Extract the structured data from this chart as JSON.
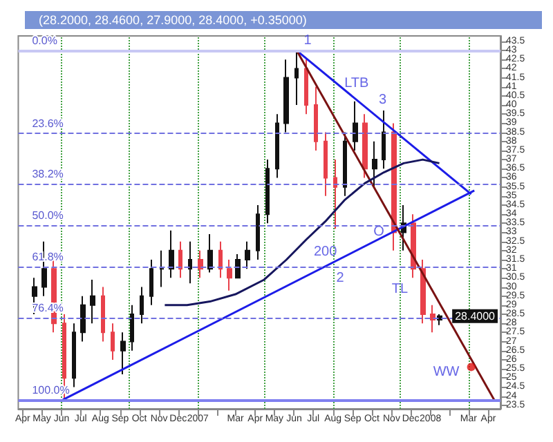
{
  "chart_data": {
    "type": "candlestick",
    "title": "(28.2000, 28.4600, 27.9000, 28.4000, +0.35000)",
    "x": [
      "2006-04-20",
      "2006-05-05",
      "2006-05-20",
      "2006-06-05",
      "2006-06-20",
      "2006-07-05",
      "2006-07-20",
      "2006-08-05",
      "2006-08-20",
      "2006-09-05",
      "2006-09-20",
      "2006-10-05",
      "2006-10-20",
      "2006-11-05",
      "2006-11-20",
      "2006-12-05",
      "2006-12-20",
      "2007-01-05",
      "2007-01-20",
      "2007-02-05",
      "2007-02-20",
      "2007-03-05",
      "2007-03-20",
      "2007-04-05",
      "2007-04-20",
      "2007-05-05",
      "2007-05-20",
      "2007-06-05",
      "2007-06-20",
      "2007-07-05",
      "2007-07-20",
      "2007-08-05",
      "2007-08-20",
      "2007-09-05",
      "2007-09-20",
      "2007-10-05",
      "2007-10-20",
      "2007-11-05",
      "2007-11-20",
      "2007-12-05",
      "2007-12-20",
      "2008-01-05",
      "2008-01-15"
    ],
    "ohlc": [
      [
        29.5,
        30.5,
        28.5,
        30
      ],
      [
        30,
        32.5,
        29.5,
        31
      ],
      [
        31,
        31.5,
        27.5,
        28
      ],
      [
        28,
        28.5,
        23.8,
        25
      ],
      [
        25,
        28,
        24.5,
        27.5
      ],
      [
        27.5,
        29.5,
        27,
        29
      ],
      [
        29,
        30.4,
        28,
        29.5
      ],
      [
        29.5,
        30,
        27,
        27.5
      ],
      [
        27.5,
        28,
        26,
        26.5
      ],
      [
        26.5,
        27.5,
        25.2,
        27
      ],
      [
        27,
        29,
        26.5,
        28.5
      ],
      [
        28.5,
        30,
        28,
        29.5
      ],
      [
        29.5,
        31.5,
        29,
        31
      ],
      [
        31,
        32,
        30,
        31
      ],
      [
        31,
        33.1,
        30.5,
        32
      ],
      [
        32,
        32.5,
        30.5,
        31
      ],
      [
        31,
        32.5,
        30.2,
        31.5
      ],
      [
        31.5,
        32,
        30.5,
        31
      ],
      [
        31,
        32.9,
        30.8,
        32
      ],
      [
        32,
        32.5,
        30.5,
        31
      ],
      [
        31,
        31.5,
        29.8,
        30.5
      ],
      [
        30.5,
        31.8,
        30.5,
        31.5
      ],
      [
        31.5,
        32.5,
        31,
        32
      ],
      [
        32,
        34.5,
        31.5,
        34
      ],
      [
        34,
        37,
        33.5,
        36.5
      ],
      [
        36.5,
        39.5,
        36,
        39
      ],
      [
        39,
        42.5,
        38.5,
        41.5
      ],
      [
        41.5,
        43,
        40,
        42
      ],
      [
        42,
        42.5,
        39.5,
        40
      ],
      [
        40,
        41,
        37.5,
        38
      ],
      [
        38,
        38.5,
        35,
        36
      ],
      [
        36,
        37,
        33.2,
        35.5
      ],
      [
        35.5,
        38.5,
        35,
        38
      ],
      [
        38,
        40.2,
        37.5,
        39
      ],
      [
        39,
        39.5,
        36,
        36.5
      ],
      [
        36.5,
        38,
        35.5,
        37
      ],
      [
        37,
        39.7,
        36.5,
        38.5
      ],
      [
        38.5,
        39,
        32,
        33
      ],
      [
        33,
        34.5,
        32,
        33.5
      ],
      [
        33.5,
        34,
        30.5,
        31
      ],
      [
        31,
        31.5,
        28,
        28.5
      ],
      [
        28.5,
        29,
        27.5,
        28.2
      ],
      [
        28.2,
        28.5,
        27.9,
        28.4
      ]
    ],
    "colors": [
      "#111111",
      "#111111",
      "#e8404a",
      "#e8404a",
      "#111111",
      "#111111",
      "#111111",
      "#e8404a",
      "#e8404a",
      "#111111",
      "#111111",
      "#111111",
      "#111111",
      "#111111",
      "#111111",
      "#e8404a",
      "#111111",
      "#e8404a",
      "#111111",
      "#e8404a",
      "#e8404a",
      "#111111",
      "#111111",
      "#111111",
      "#111111",
      "#111111",
      "#111111",
      "#111111",
      "#e8404a",
      "#e8404a",
      "#e8404a",
      "#e8404a",
      "#111111",
      "#111111",
      "#e8404a",
      "#111111",
      "#111111",
      "#e8404a",
      "#111111",
      "#e8404a",
      "#e8404a",
      "#e8404a",
      "#111111"
    ],
    "series": [
      {
        "type": "line",
        "color": "#1c1ce8",
        "x": [
          "2006-06-03",
          "2008-03-10"
        ],
        "values": [
          23.8,
          35.3
        ]
      },
      {
        "type": "line",
        "color": "#1c1ce8",
        "x": [
          "2007-06-05",
          "2008-03-05"
        ],
        "values": [
          43.0,
          35.1
        ]
      },
      {
        "type": "line",
        "color": "#7a1212",
        "x": [
          "2007-06-05",
          "2008-04-10"
        ],
        "values": [
          43.0,
          23.8
        ]
      },
      {
        "type": "line",
        "color": "#16165e",
        "x": [
          "2006-11-10",
          "2006-12-15",
          "2007-01-20",
          "2007-03-01",
          "2007-04-15",
          "2007-05-20",
          "2007-06-20",
          "2007-07-20",
          "2007-08-20",
          "2007-09-20",
          "2007-10-20",
          "2007-11-20",
          "2007-12-20",
          "2008-01-15"
        ],
        "values": [
          29.0,
          29.0,
          29.2,
          29.6,
          30.4,
          31.5,
          32.6,
          33.6,
          34.8,
          35.7,
          36.3,
          36.8,
          37.0,
          36.8
        ]
      },
      {
        "type": "scatter",
        "color": "#e01010",
        "marker": "circle",
        "x": [
          "2008-03-05"
        ],
        "values": [
          25.6
        ]
      }
    ],
    "xlim": [
      "2006-03-25",
      "2008-04-20"
    ],
    "xticks": [
      {
        "value": "2006-04-01",
        "label": "Apr"
      },
      {
        "value": "2006-05-01",
        "label": "May"
      },
      {
        "value": "2006-06-01",
        "label": "Jun"
      },
      {
        "value": "2006-07-01",
        "label": "Jul"
      },
      {
        "value": "2006-08-01",
        "label": "Aug"
      },
      {
        "value": "2006-09-01",
        "label": "Sep"
      },
      {
        "value": "2006-10-01",
        "label": "Oct"
      },
      {
        "value": "2006-11-01",
        "label": "Nov"
      },
      {
        "value": "2006-12-01",
        "label": "Dec"
      },
      {
        "value": "2007-01-01",
        "label": "2007"
      },
      {
        "value": "2007-02-01",
        "label": null
      },
      {
        "value": "2007-03-01",
        "label": "Mar"
      },
      {
        "value": "2007-04-01",
        "label": "Apr"
      },
      {
        "value": "2007-05-01",
        "label": "May"
      },
      {
        "value": "2007-06-01",
        "label": "Jun"
      },
      {
        "value": "2007-07-01",
        "label": "Jul"
      },
      {
        "value": "2007-08-01",
        "label": "Aug"
      },
      {
        "value": "2007-09-01",
        "label": "Sep"
      },
      {
        "value": "2007-10-01",
        "label": "Oct"
      },
      {
        "value": "2007-11-01",
        "label": "Nov"
      },
      {
        "value": "2007-12-01",
        "label": "Dec"
      },
      {
        "value": "2008-01-01",
        "label": "2008"
      },
      {
        "value": "2008-02-01",
        "label": null
      },
      {
        "value": "2008-03-01",
        "label": "Mar"
      },
      {
        "value": "2008-04-01",
        "label": "Apr"
      }
    ],
    "ylim": [
      23.3,
      43.8
    ],
    "yticks": [
      23.5,
      24,
      24.5,
      25,
      25.5,
      26,
      26.5,
      27,
      27.5,
      28,
      28.5,
      29,
      29.5,
      30,
      30.5,
      31,
      31.5,
      32,
      32.5,
      33,
      33.5,
      34,
      34.5,
      35,
      35.5,
      36,
      36.5,
      37,
      37.5,
      38,
      38.5,
      39,
      39.5,
      40,
      40.5,
      41,
      41.5,
      42,
      42.5,
      43,
      43.5
    ],
    "y2lim": [
      102.6,
      -4.2
    ],
    "ref_lines": [
      {
        "axis": "y2",
        "value": 0,
        "label": "0.0%",
        "color": "#c8c8f4",
        "line_style": "solid"
      },
      {
        "axis": "y2",
        "value": 23.6,
        "label": "23.6%",
        "color": "#7070e0",
        "line_style": "dashed"
      },
      {
        "axis": "y2",
        "value": 38.2,
        "label": "38.2%",
        "color": "#7070e0",
        "line_style": "dashed"
      },
      {
        "axis": "y2",
        "value": 50,
        "label": "50.0%",
        "color": "#7070e0",
        "line_style": "dashed"
      },
      {
        "axis": "y2",
        "value": 61.8,
        "label": "61.8%",
        "color": "#7070e0",
        "line_style": "dashed"
      },
      {
        "axis": "y2",
        "value": 76.4,
        "label": "76.4%",
        "color": "#7070e0",
        "line_style": "dashed"
      },
      {
        "axis": "y2",
        "value": 100,
        "label": "100.0%",
        "color": "#8080f0",
        "line_style": "solid"
      },
      {
        "axis": "x",
        "value": "2006-06-01",
        "label": null,
        "color": "#40a040",
        "line_style": "dotted"
      },
      {
        "axis": "x",
        "value": "2006-09-15",
        "label": null,
        "color": "#40a040",
        "line_style": "dotted"
      },
      {
        "axis": "x",
        "value": "2007-01-01",
        "label": null,
        "color": "#40a040",
        "line_style": "dotted"
      },
      {
        "axis": "x",
        "value": "2007-04-15",
        "label": null,
        "color": "#40a040",
        "line_style": "dotted"
      },
      {
        "axis": "x",
        "value": "2007-08-01",
        "label": null,
        "color": "#40a040",
        "line_style": "dotted"
      },
      {
        "axis": "x",
        "value": "2007-11-15",
        "label": null,
        "color": "#40a040",
        "line_style": "dotted"
      },
      {
        "axis": "x",
        "value": "2008-03-01",
        "label": null,
        "color": "#40a040",
        "line_style": "dotted"
      }
    ],
    "annotations": [
      {
        "text": "1",
        "x": "2007-06-05",
        "y": 43.0
      },
      {
        "text": "LTB",
        "x": "2007-09-20",
        "y": 39.9
      },
      {
        "text": "3",
        "x": "2007-10-05",
        "y": 39.5
      },
      {
        "text": "200",
        "x": "2007-07-20",
        "y": 33.6
      },
      {
        "text": "2",
        "x": "2007-08-08",
        "y": 31.1
      },
      {
        "text": "O",
        "x": "2007-11-05",
        "y": 33.0
      },
      {
        "text": "TL",
        "x": "2007-12-10",
        "y": 31.4
      },
      {
        "text": "WW",
        "x": "2008-03-05",
        "y": 25.6
      },
      {
        "text": "28.4000",
        "x": "2008-01-15",
        "y": 28.4
      }
    ],
    "grid": false
  }
}
